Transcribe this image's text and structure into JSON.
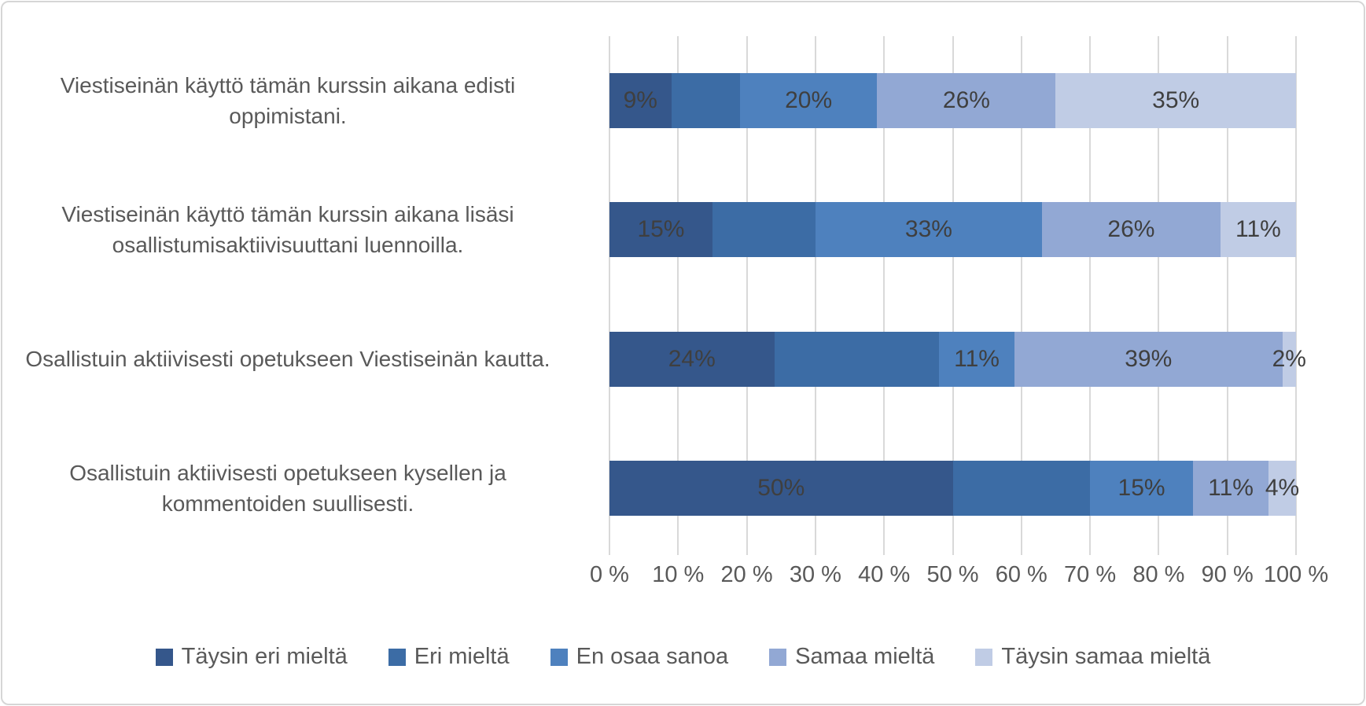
{
  "chart_data": {
    "type": "bar",
    "orientation": "horizontal-stacked",
    "title": "",
    "xlabel": "",
    "ylabel": "",
    "xlim": [
      0,
      100
    ],
    "grid": true,
    "legend_position": "bottom",
    "categories": [
      "Viestiseinän käyttö tämän kurssin aikana edisti oppimistani.",
      "Viestiseinän käyttö tämän kurssin aikana lisäsi osallistumisaktiivisuuttani luennoilla.",
      "Osallistuin aktiivisesti opetukseen Viestiseinän kautta.",
      "Osallistuin aktiivisesti opetukseen kysellen ja kommentoiden suullisesti."
    ],
    "series": [
      {
        "name": "Täysin eri mieltä",
        "color": "#35578b",
        "values": [
          9,
          15,
          24,
          50
        ],
        "labels": [
          "9%",
          "15%",
          "24%",
          "50%"
        ]
      },
      {
        "name": "Eri mieltä",
        "color": "#3c6ca5",
        "values": [
          10,
          15,
          24,
          20
        ],
        "labels": [
          "",
          "",
          "",
          ""
        ]
      },
      {
        "name": "En osaa sanoa",
        "color": "#4e81be",
        "values": [
          20,
          33,
          11,
          15
        ],
        "labels": [
          "20%",
          "33%",
          "11%",
          "15%"
        ]
      },
      {
        "name": "Samaa mieltä",
        "color": "#92a8d4",
        "values": [
          26,
          26,
          39,
          11
        ],
        "labels": [
          "26%",
          "26%",
          "39%",
          "11%"
        ]
      },
      {
        "name": "Täysin samaa mieltä",
        "color": "#c0cce5",
        "values": [
          35,
          11,
          2,
          4
        ],
        "labels": [
          "35%",
          "11%",
          "2%",
          "4%"
        ]
      }
    ],
    "x_axis_ticks": [
      "0 %",
      "10 %",
      "20 %",
      "30 %",
      "40 %",
      "50 %",
      "60 %",
      "70 %",
      "80 %",
      "90 %",
      "100 %"
    ],
    "colors": {
      "gridline": "#d9d9d9",
      "frame_border": "#d6d6d6",
      "value_label": "#3f3f3f",
      "axis_text": "#595959"
    }
  }
}
